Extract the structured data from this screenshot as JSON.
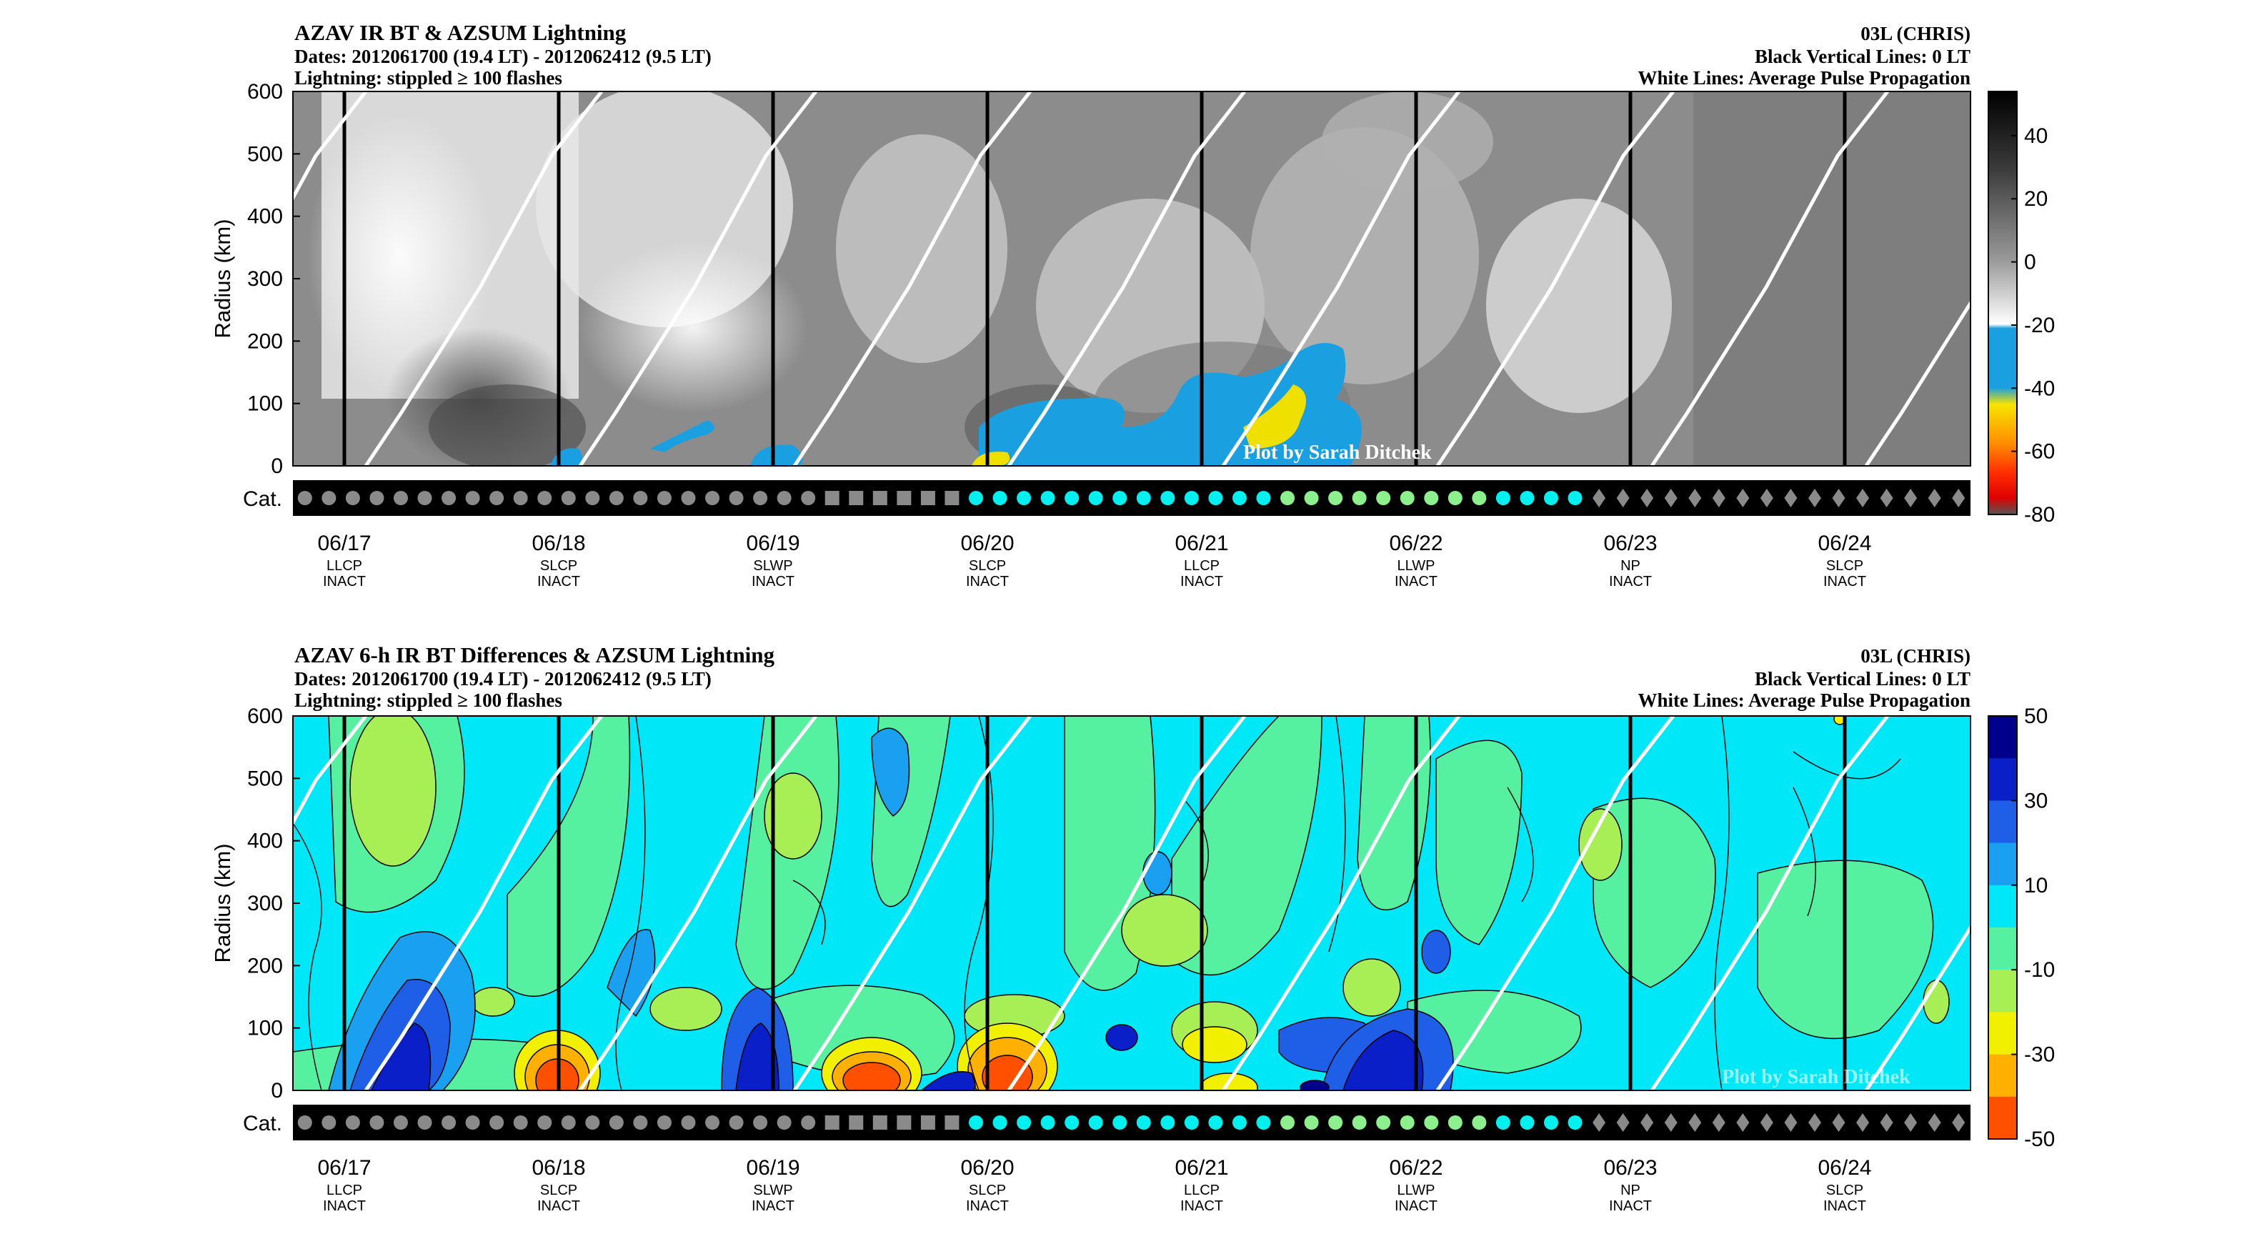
{
  "chart_data": [
    {
      "type": "heatmap",
      "title": "AZAV IR BT & AZSUM Lightning",
      "subtitle_lines": [
        "Dates: 2012061700 (19.4 LT) - 2012062412 (9.5 LT)",
        "Lightning: stippled ≥ 100 flashes"
      ],
      "right_lines": [
        "03L (CHRIS)",
        "Black Vertical Lines: 0 LT",
        "White Lines: Average Pulse Propagation"
      ],
      "ylabel": "Radius (km)",
      "ylim": [
        0,
        600
      ],
      "y_ticks": [
        "0",
        "100",
        "200",
        "300",
        "400",
        "500",
        "600"
      ],
      "colorbar": {
        "ticks": [
          "40",
          "20",
          "0",
          "-20",
          "-40",
          "-60",
          "-80"
        ],
        "range": [
          -80,
          54
        ],
        "stops": [
          "#555555",
          "#c8c8c8",
          "#ffffff",
          "#1a9fe0",
          "#f7e400",
          "#ff9000",
          "#ff3000",
          "#e00000"
        ]
      },
      "credit": "Plot by Sarah Ditchek",
      "category_label": "Cat."
    },
    {
      "type": "heatmap",
      "title": "AZAV 6-h IR BT Differences & AZSUM Lightning",
      "subtitle_lines": [
        "Dates: 2012061700 (19.4 LT) - 2012062412 (9.5 LT)",
        "Lightning: stippled ≥ 100 flashes"
      ],
      "right_lines": [
        "03L (CHRIS)",
        "Black Vertical Lines: 0 LT",
        "White Lines: Average Pulse Propagation"
      ],
      "ylabel": "Radius (km)",
      "ylim": [
        0,
        600
      ],
      "y_ticks": [
        "0",
        "100",
        "200",
        "300",
        "400",
        "500",
        "600"
      ],
      "colorbar": {
        "ticks": [
          "50",
          "30",
          "10",
          "-10",
          "-30",
          "-50"
        ],
        "range": [
          -50,
          50
        ],
        "levels": [
          "#00008c",
          "#0a1fc8",
          "#1f5ee6",
          "#1aa0f0",
          "#00e8f8",
          "#55f0a0",
          "#a8ee55",
          "#f0f000",
          "#ffb000",
          "#ff5000"
        ]
      },
      "credit": "Plot by Sarah Ditchek",
      "category_label": "Cat."
    }
  ],
  "x_axis": {
    "dates": [
      "06/17",
      "06/18",
      "06/19",
      "06/20",
      "06/21",
      "06/22",
      "06/23",
      "06/24"
    ],
    "line2": [
      "LLCP",
      "SLCP",
      "SLWP",
      "SLCP",
      "LLCP",
      "LLWP",
      "NP",
      "SLCP"
    ],
    "line3": [
      "INACT",
      "INACT",
      "INACT",
      "INACT",
      "INACT",
      "INACT",
      "INACT",
      "INACT"
    ]
  },
  "category_markers": {
    "sequence": [
      "gray-circle",
      "gray-circle",
      "gray-circle",
      "gray-circle",
      "gray-circle",
      "gray-circle",
      "gray-circle",
      "gray-circle",
      "gray-circle",
      "gray-circle",
      "gray-circle",
      "gray-circle",
      "gray-circle",
      "gray-circle",
      "gray-circle",
      "gray-circle",
      "gray-circle",
      "gray-circle",
      "gray-circle",
      "gray-circle",
      "gray-circle",
      "gray-circle",
      "gray-square",
      "gray-square",
      "gray-square",
      "gray-square",
      "gray-square",
      "gray-square",
      "cyan-circle",
      "cyan-circle",
      "cyan-circle",
      "cyan-circle",
      "cyan-circle",
      "cyan-circle",
      "cyan-circle",
      "cyan-circle",
      "cyan-circle",
      "cyan-circle",
      "cyan-circle",
      "cyan-circle",
      "cyan-circle",
      "green-circle",
      "green-circle",
      "green-circle",
      "green-circle",
      "green-circle",
      "green-circle",
      "green-circle",
      "green-circle",
      "green-circle",
      "cyan-circle",
      "cyan-circle",
      "cyan-circle",
      "cyan-circle",
      "gray-diamond",
      "gray-diamond",
      "gray-diamond",
      "gray-diamond",
      "gray-diamond",
      "gray-diamond",
      "gray-diamond",
      "gray-diamond",
      "gray-diamond",
      "gray-diamond",
      "gray-diamond",
      "gray-diamond",
      "gray-diamond",
      "gray-diamond",
      "gray-diamond",
      "gray-diamond"
    ],
    "colors": {
      "gray": "#8a8a8a",
      "cyan": "#00f0f0",
      "green": "#8cf08c"
    }
  }
}
